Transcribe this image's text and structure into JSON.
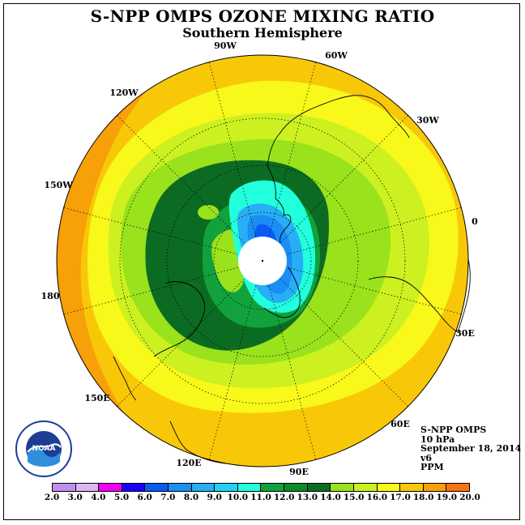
{
  "title": "S-NPP OMPS OZONE MIXING RATIO",
  "subtitle": "Southern Hemisphere",
  "longitude_labels": [
    "90W",
    "60W",
    "30W",
    "0",
    "30E",
    "60E",
    "90E",
    "120E",
    "150E",
    "180",
    "150W",
    "120W"
  ],
  "info": {
    "instrument": "S-NPP OMPS",
    "level": "10 hPa",
    "date": "September 18, 2014",
    "version": "v6",
    "units": "PPM"
  },
  "logo": {
    "text": "NOAA",
    "ring_text": "NATIONAL OCEANIC AND ATMOSPHERIC ADMINISTRATION · U.S. DEPARTMENT OF COMMERCE"
  },
  "colorbar": {
    "ticks": [
      "2.0",
      "3.0",
      "4.0",
      "5.0",
      "6.0",
      "7.0",
      "8.0",
      "9.0",
      "10.0",
      "11.0",
      "12.0",
      "13.0",
      "14.0",
      "15.0",
      "16.0",
      "17.0",
      "18.0",
      "19.0",
      "20.0"
    ],
    "colors": [
      "#c08ef0",
      "#dcb6f4",
      "#f000f0",
      "#1a00ff",
      "#0a5af5",
      "#1a8ef5",
      "#28aef5",
      "#22d0f5",
      "#22ffdd",
      "#11a23c",
      "#0a8a2a",
      "#0c6b22",
      "#99e21c",
      "#ccf020",
      "#f8f81a",
      "#f8c808",
      "#f8a008",
      "#f87410",
      "#f01010",
      "#8c5a38"
    ],
    "bins": [
      "2-3",
      "3-4",
      "4-5",
      "5-6",
      "6-7",
      "7-8",
      "8-9",
      "9-10",
      "10-11",
      "11-12",
      "12-13",
      "13-14",
      "14-15",
      "15-16",
      "16-17",
      "17-18",
      "18-19",
      "19-20"
    ]
  },
  "map_colors": {
    "orange_dark": "#f8a008",
    "orange": "#f8c808",
    "yellow": "#f8f81a",
    "yellow_green": "#ccf020",
    "light_green": "#99e21c",
    "green_dark": "#0c6b22",
    "green_mid": "#11a23c",
    "cyan": "#22ffdd",
    "sky": "#28aef5",
    "blue": "#1a8ef5",
    "deep_blue": "#0a5af5"
  }
}
